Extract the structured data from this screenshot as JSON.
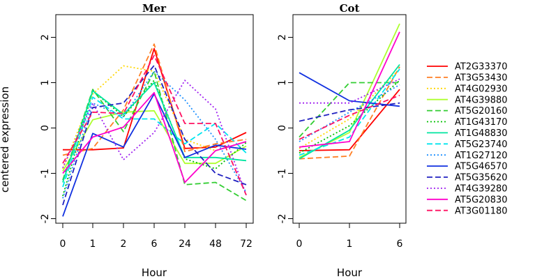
{
  "ylabel": "centered expression",
  "chart_data": [
    {
      "type": "line",
      "title": "Mer",
      "xlabel": "Hour",
      "categories": [
        "0",
        "1",
        "2",
        "6",
        "24",
        "48",
        "72"
      ],
      "ylim": [
        -2.1,
        2.5
      ],
      "yticks": [
        -2,
        -1,
        0,
        1,
        2
      ],
      "series": [
        {
          "name": "AT2G33370",
          "values": [
            -0.48,
            -0.48,
            -0.44,
            1.75,
            -0.45,
            -0.42,
            -0.1
          ]
        },
        {
          "name": "AT3G53430",
          "values": [
            -0.6,
            -0.45,
            0.4,
            1.85,
            -0.52,
            -0.35,
            -0.25
          ]
        },
        {
          "name": "AT4G02930",
          "values": [
            -0.9,
            0.75,
            1.37,
            1.25,
            -0.25,
            -0.5,
            -0.3
          ]
        },
        {
          "name": "AT4G39880",
          "values": [
            -0.95,
            0.18,
            0.35,
            0.38,
            -0.78,
            -0.78,
            -0.4
          ]
        },
        {
          "name": "AT5G20160",
          "values": [
            -1.15,
            0.85,
            -0.08,
            1.25,
            -1.25,
            -1.2,
            -1.6
          ]
        },
        {
          "name": "AT1G43170",
          "values": [
            -1.5,
            0.82,
            0.25,
            1.05,
            -0.68,
            -0.9,
            -0.32
          ]
        },
        {
          "name": "AT1G48830",
          "values": [
            -1.2,
            0.82,
            0.3,
            1.0,
            -0.65,
            -0.65,
            -0.72
          ]
        },
        {
          "name": "AT5G23740",
          "values": [
            -1.3,
            0.68,
            0.2,
            0.2,
            -0.35,
            0.1,
            -0.55
          ]
        },
        {
          "name": "AT1G27120",
          "values": [
            -1.55,
            0.55,
            0.25,
            1.25,
            0.62,
            -0.25,
            -1.42
          ]
        },
        {
          "name": "AT5G46570",
          "values": [
            -1.95,
            -0.12,
            -0.42,
            0.75,
            -0.65,
            -0.38,
            -0.47
          ]
        },
        {
          "name": "AT5G35620",
          "values": [
            -1.7,
            0.45,
            0.55,
            1.38,
            -0.25,
            -1.0,
            -1.25
          ]
        },
        {
          "name": "AT4G39280",
          "values": [
            -0.88,
            0.55,
            -0.7,
            -0.1,
            1.05,
            0.42,
            -1.48
          ]
        },
        {
          "name": "AT5G20830",
          "values": [
            -1.0,
            -0.2,
            0.02,
            0.78,
            -1.2,
            -0.5,
            -0.3
          ]
        },
        {
          "name": "AT3G01180",
          "values": [
            -0.78,
            0.35,
            0.32,
            1.6,
            0.1,
            0.1,
            -1.48
          ]
        }
      ]
    },
    {
      "type": "line",
      "title": "Cot",
      "xlabel": "Hour",
      "categories": [
        "0",
        "1",
        "6"
      ],
      "ylim": [
        -2.1,
        2.5
      ],
      "yticks": [
        -2,
        -1,
        0,
        1,
        2
      ],
      "series": [
        {
          "name": "AT2G33370",
          "values": [
            -0.5,
            -0.48,
            0.85
          ]
        },
        {
          "name": "AT3G53430",
          "values": [
            -0.68,
            -0.62,
            1.35
          ]
        },
        {
          "name": "AT4G02930",
          "values": [
            -0.45,
            0.2,
            1.3
          ]
        },
        {
          "name": "AT4G39880",
          "values": [
            -0.65,
            -0.1,
            2.3
          ]
        },
        {
          "name": "AT5G20160",
          "values": [
            -0.2,
            1.0,
            1.0
          ]
        },
        {
          "name": "AT1G43170",
          "values": [
            -0.55,
            0.05,
            1.05
          ]
        },
        {
          "name": "AT1G48830",
          "values": [
            -0.68,
            -0.05,
            1.4
          ]
        },
        {
          "name": "AT5G23740",
          "values": [
            -0.6,
            -0.2,
            1.3
          ]
        },
        {
          "name": "AT1G27120",
          "values": [
            -0.3,
            0.35,
            0.95
          ]
        },
        {
          "name": "AT5G46570",
          "values": [
            1.22,
            0.6,
            0.48
          ]
        },
        {
          "name": "AT5G35620",
          "values": [
            0.15,
            0.4,
            0.55
          ]
        },
        {
          "name": "AT4G39280",
          "values": [
            0.55,
            0.55,
            1.08
          ]
        },
        {
          "name": "AT5G20830",
          "values": [
            -0.42,
            -0.3,
            2.12
          ]
        },
        {
          "name": "AT3G01180",
          "values": [
            -0.25,
            0.28,
            0.72
          ]
        }
      ]
    }
  ],
  "series_styles": [
    {
      "color": "#ff0000",
      "dash": "solid"
    },
    {
      "color": "#ff7f24",
      "dash": "dashed"
    },
    {
      "color": "#ffd700",
      "dash": "dotted"
    },
    {
      "color": "#adff2f",
      "dash": "solid"
    },
    {
      "color": "#32cd32",
      "dash": "dashed"
    },
    {
      "color": "#00c000",
      "dash": "dotted"
    },
    {
      "color": "#00e5a0",
      "dash": "solid"
    },
    {
      "color": "#00e5ee",
      "dash": "dashed"
    },
    {
      "color": "#1e90ff",
      "dash": "dotted"
    },
    {
      "color": "#1030e0",
      "dash": "solid"
    },
    {
      "color": "#2020c0",
      "dash": "dashed"
    },
    {
      "color": "#a020f0",
      "dash": "dotted"
    },
    {
      "color": "#ff00cc",
      "dash": "solid"
    },
    {
      "color": "#ff1060",
      "dash": "dashed"
    }
  ]
}
